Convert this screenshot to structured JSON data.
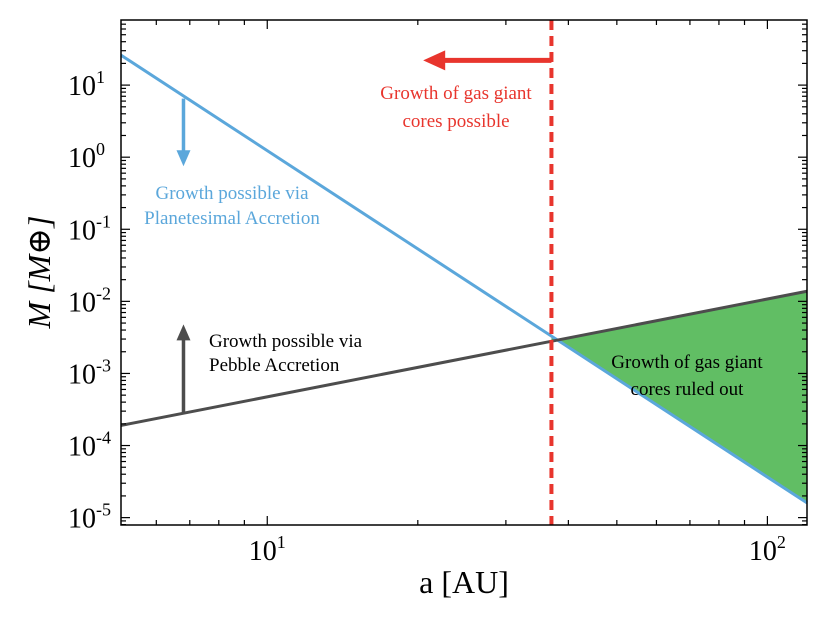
{
  "chart_data": {
    "type": "line",
    "title": "",
    "xlabel": "a [AU]",
    "ylabel": "M [M⊕]",
    "x_scale": "log",
    "y_scale": "log",
    "xlim": [
      5.1,
      120
    ],
    "ylim": [
      7.9e-06,
      80
    ],
    "grid": false,
    "legend": "none",
    "x_ticks": [
      {
        "value": 10,
        "base": "10",
        "exp": "1"
      },
      {
        "value": 100,
        "base": "10",
        "exp": "2"
      }
    ],
    "y_ticks": [
      {
        "value": 10,
        "base": "10",
        "exp": "1"
      },
      {
        "value": 1,
        "base": "10",
        "exp": "0"
      },
      {
        "value": 0.1,
        "base": "10",
        "exp": "-1"
      },
      {
        "value": 0.01,
        "base": "10",
        "exp": "-2"
      },
      {
        "value": 0.001,
        "base": "10",
        "exp": "-3"
      },
      {
        "value": 0.0001,
        "base": "10",
        "exp": "-4"
      },
      {
        "value": 1e-05,
        "base": "10",
        "exp": "-5"
      }
    ],
    "series": [
      {
        "color": "#5BA7DB",
        "x": [
          5.1,
          120
        ],
        "y": [
          26,
          1.6e-05
        ]
      },
      {
        "color": "#4D4D4D",
        "x": [
          5.1,
          120
        ],
        "y": [
          0.00019,
          0.0138
        ]
      }
    ],
    "boundary_x": 37,
    "boundary_color": "#E8352D",
    "shaded_region": {
      "color": "#61BE64",
      "x_range": [
        37,
        120
      ]
    },
    "annotations": [
      {
        "id": "gas-possible-1",
        "text": "Growth of gas giant",
        "color": "#E8352D"
      },
      {
        "id": "gas-possible-2",
        "text": "cores possible",
        "color": "#E8352D"
      },
      {
        "id": "planetesimal-1",
        "text": "Growth possible via",
        "color": "#5BA7DB"
      },
      {
        "id": "planetesimal-2",
        "text": "Planetesimal Accretion",
        "color": "#5BA7DB"
      },
      {
        "id": "pebble-1",
        "text": "Growth possible via",
        "color": "#000000"
      },
      {
        "id": "pebble-2",
        "text": "Pebble Accretion",
        "color": "#000000"
      },
      {
        "id": "ruled-out-1",
        "text": "Growth of gas giant",
        "color": "#000000"
      },
      {
        "id": "ruled-out-2",
        "text": "cores ruled out",
        "color": "#000000"
      }
    ],
    "arrows": [
      {
        "id": "red-arrow",
        "direction": "left",
        "x_from": 37,
        "x_to": 20.5,
        "y": 22,
        "color": "#E8352D"
      },
      {
        "id": "blue-arrow",
        "direction": "down",
        "x": 6.8,
        "y_from": 6.5,
        "y_to": 0.75,
        "color": "#5BA7DB"
      },
      {
        "id": "gray-arrow",
        "direction": "up",
        "x": 6.8,
        "y_from": 0.00029,
        "y_to": 0.0048,
        "color": "#4D4D4D"
      }
    ]
  }
}
